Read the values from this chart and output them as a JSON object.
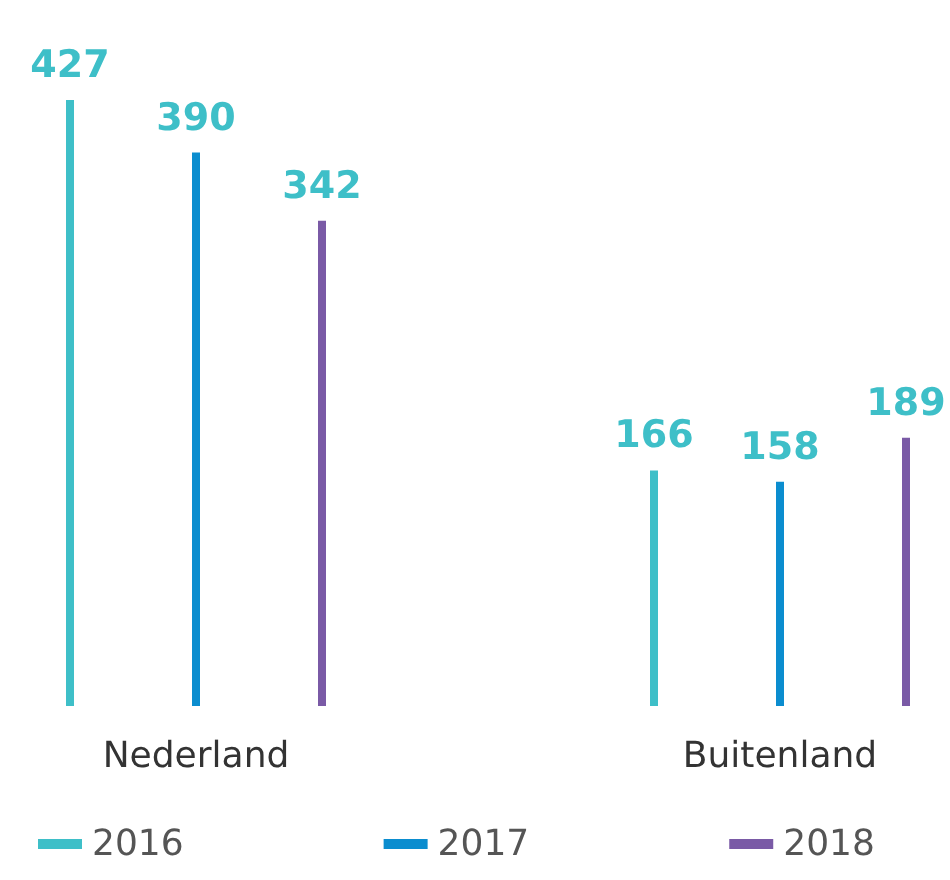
{
  "chart_data": {
    "type": "bar",
    "categories": [
      "Nederland",
      "Buitenland"
    ],
    "series": [
      {
        "name": "2016",
        "color": "#3ebfc8",
        "values": [
          427,
          166
        ]
      },
      {
        "name": "2017",
        "color": "#0b8dcf",
        "values": [
          390,
          158
        ]
      },
      {
        "name": "2018",
        "color": "#7a5aa6",
        "values": [
          342,
          189
        ]
      }
    ],
    "data_labels": true,
    "legend": "bottom",
    "grid": false,
    "tick_labels": "x"
  }
}
